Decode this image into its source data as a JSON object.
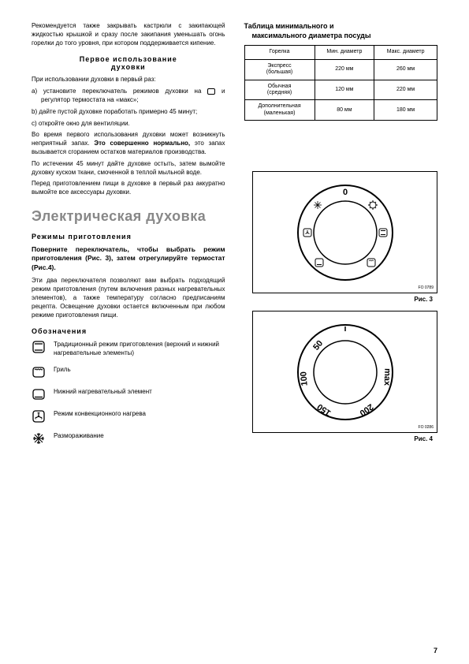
{
  "left": {
    "intro": "Рекомендуется также закрывать кастрюли с закипающей жидкостью крышкой и сразу после закипания уменьшать огонь горелки до того уровня, при котором поддерживается кипение.",
    "h_first_use_1": "Первое использование",
    "h_first_use_2": "духовки",
    "first_use_intro": "При использовании духовки в первый раз:",
    "a_pre": "a) установите переключатель режимов духовки на ",
    "a_post": " и регулятор термостата на «макс»;",
    "b": "b) дайте пустой духовке поработать примерно 45 минут;",
    "c": "c) откройте окно для вентиляции.",
    "smell1": "Во время первого использования духовки может возникнуть неприятный запах. ",
    "smell_bold": "Это совершенно нормально,",
    "smell2": " это запах вызывается сгоранием остатков материалов производства.",
    "after45": "По истечении 45 минут дайте духовке остыть, затем вымойте духовку куском ткани, смоченной в теплой мыльной воде.",
    "before_cook": "Перед приготовлением пищи в духовке в первый раз аккуратно вымойте все аксессуары духовки.",
    "section_title": "Электрическая духовка",
    "modes_title": "Режимы приготовления",
    "instruction": "Поверните переключатель, чтобы выбрать режим приготовления (Рис. 3), затем отрегулируйте термостат (Рис.4).",
    "desc": "Эти два переключателя позволяют вам выбрать подходящий режим приготовления (путем включения разных нагревательных элементов), а также температуру  согласно предписаниям рецепта. Освещение духовки остается включенным при любом режиме приготовления пищи.",
    "legend_title": "Обозначения",
    "legend": [
      "Традиционный режим приготовления (верхний и нижний нагревательные элементы)",
      "Гриль",
      "Нижний нагревательный элемент",
      "Режим конвекционного нагрева",
      "Размораживание"
    ]
  },
  "right": {
    "table_title1": "Таблица минимального и",
    "table_title2": "максимального диаметра посуды",
    "table": {
      "headers": [
        "Горелка",
        "Мин. диаметр",
        "Макс. диаметр"
      ],
      "rows": [
        [
          "Экспресс\n(большая)",
          "220 мм",
          "260 мм"
        ],
        [
          "Обычная\n(средняя)",
          "120 мм",
          "220 мм"
        ],
        [
          "Дополнительная\n(маленькая)",
          "80 мм",
          "180 мм"
        ]
      ]
    },
    "fig3": "Рис. 3",
    "fig4": "Рис. 4",
    "fo_note": "FO 0789"
  },
  "temps": [
    "50",
    "100",
    "150",
    "200",
    "max"
  ],
  "page": "7"
}
